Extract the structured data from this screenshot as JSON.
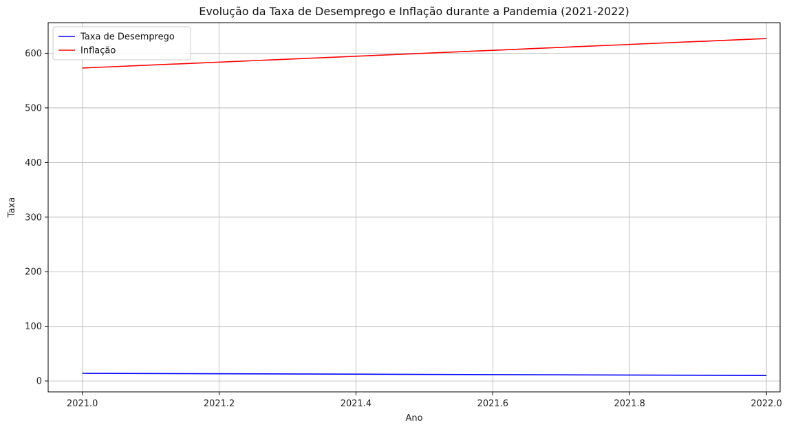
{
  "chart_data": {
    "type": "line",
    "title": "Evolução da Taxa de Desemprego e Inflação durante a Pandemia (2021-2022)",
    "xlabel": "Ano",
    "ylabel": "Taxa",
    "xlim": [
      2020.95,
      2022.02
    ],
    "ylim": [
      -20,
      656
    ],
    "x_ticks": [
      2021.0,
      2021.2,
      2021.4,
      2021.6,
      2021.8,
      2022.0
    ],
    "x_tick_labels": [
      "2021.0",
      "2021.2",
      "2021.4",
      "2021.6",
      "2021.8",
      "2022.0"
    ],
    "y_ticks": [
      0,
      100,
      200,
      300,
      400,
      500,
      600
    ],
    "y_tick_labels": [
      "0",
      "100",
      "200",
      "300",
      "400",
      "500",
      "600"
    ],
    "grid": true,
    "legend_position": "top-left",
    "series": [
      {
        "name": "Taxa de Desemprego",
        "color": "#0000ff",
        "x": [
          2021.0,
          2022.0
        ],
        "values": [
          14,
          10
        ]
      },
      {
        "name": "Inflação",
        "color": "#ff0000",
        "x": [
          2021.0,
          2022.0
        ],
        "values": [
          573,
          627
        ]
      }
    ]
  }
}
